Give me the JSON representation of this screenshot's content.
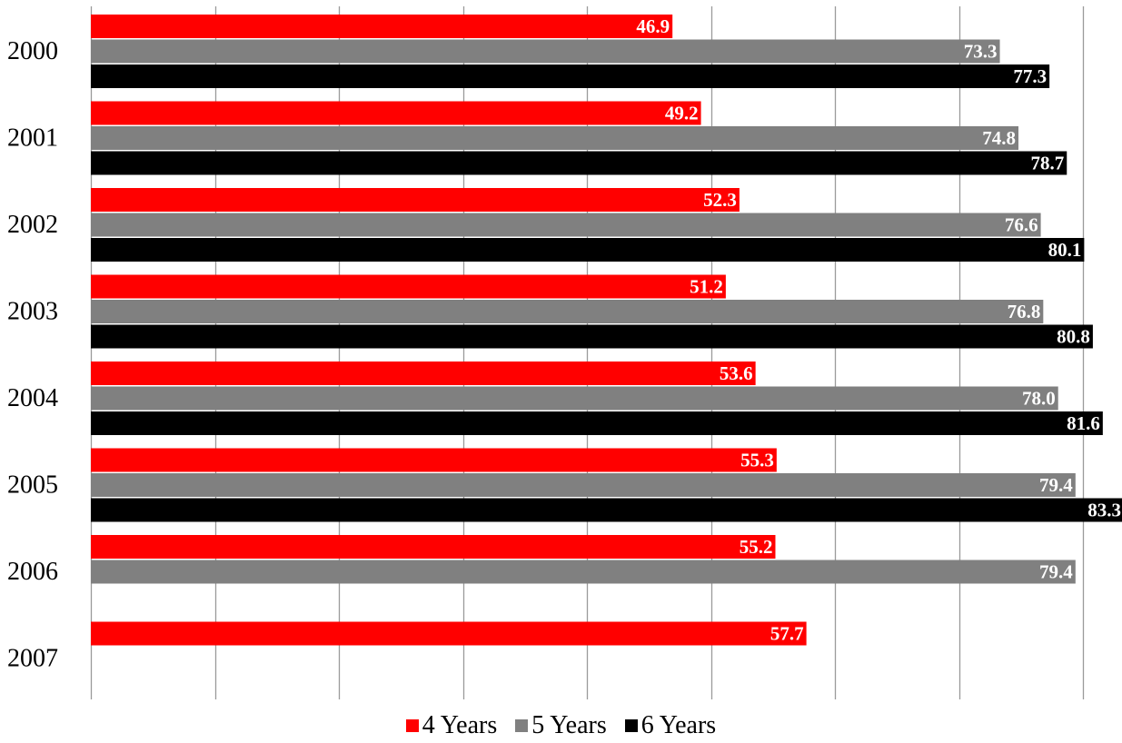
{
  "chart_data": {
    "type": "bar",
    "orientation": "horizontal",
    "categories": [
      "2000",
      "2001",
      "2002",
      "2003",
      "2004",
      "2005",
      "2006",
      "2007"
    ],
    "series": [
      {
        "name": "4 Years",
        "color": "#ff0000",
        "values": [
          46.9,
          49.2,
          52.3,
          51.2,
          53.6,
          55.3,
          55.2,
          57.7
        ],
        "labels": [
          "46.9",
          "49.2",
          "52.3",
          "51.2",
          "53.6",
          "55.3",
          "55.2",
          "57.7"
        ]
      },
      {
        "name": "5 Years",
        "color": "#808080",
        "values": [
          73.3,
          74.8,
          76.6,
          76.8,
          78.0,
          79.4,
          79.4,
          null
        ],
        "labels": [
          "73.3",
          "74.8",
          "76.6",
          "76.8",
          "78.0",
          "79.4",
          "79.4",
          null
        ]
      },
      {
        "name": "6 Years",
        "color": "#000000",
        "values": [
          77.3,
          78.7,
          80.1,
          80.8,
          81.6,
          83.3,
          null,
          null
        ],
        "labels": [
          "77.3",
          "78.7",
          "80.1",
          "80.8",
          "81.6",
          "83.3",
          null,
          null
        ]
      }
    ],
    "xlim": [
      0,
      80
    ],
    "x_gridline_step": 10,
    "grid": true,
    "legend_position": "bottom",
    "title": "",
    "xlabel": "",
    "ylabel": ""
  }
}
